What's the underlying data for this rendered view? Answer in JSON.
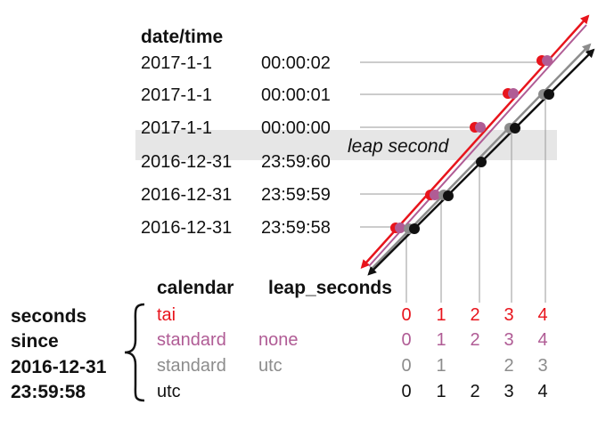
{
  "labels": {
    "datetime_header": "date/time",
    "leap_second": "leap second",
    "calendar_header": "calendar",
    "leap_seconds_header": "leap_seconds",
    "left_caption": [
      "seconds",
      "since",
      "2016-12-31",
      "23:59:58"
    ]
  },
  "rows": [
    {
      "date": "2017-1-1",
      "time": "00:00:02"
    },
    {
      "date": "2017-1-1",
      "time": "00:00:01"
    },
    {
      "date": "2017-1-1",
      "time": "00:00:00"
    },
    {
      "date": "2016-12-31",
      "time": "23:59:60"
    },
    {
      "date": "2016-12-31",
      "time": "23:59:59"
    },
    {
      "date": "2016-12-31",
      "time": "23:59:58"
    }
  ],
  "calendars": [
    {
      "calendar": "tai",
      "leap_seconds": "",
      "color": "#e8141c",
      "values": [
        "0",
        "1",
        "2",
        "3",
        "4"
      ]
    },
    {
      "calendar": "standard",
      "leap_seconds": "none",
      "color": "#b05c95",
      "values": [
        "0",
        "1",
        "2",
        "3",
        "4"
      ]
    },
    {
      "calendar": "standard",
      "leap_seconds": "utc",
      "color": "#8c8c8c",
      "values": [
        "0",
        "1",
        "",
        "2",
        "3"
      ]
    },
    {
      "calendar": "utc",
      "leap_seconds": "",
      "color": "#111111",
      "values": [
        "0",
        "1",
        "2",
        "3",
        "4"
      ]
    }
  ],
  "colors": {
    "tai": "#e8141c",
    "standard_none": "#b05c95",
    "standard_utc": "#8c8c8c",
    "utc": "#111111",
    "band": "#e6e6e6",
    "guide": "#9a9a9a"
  }
}
